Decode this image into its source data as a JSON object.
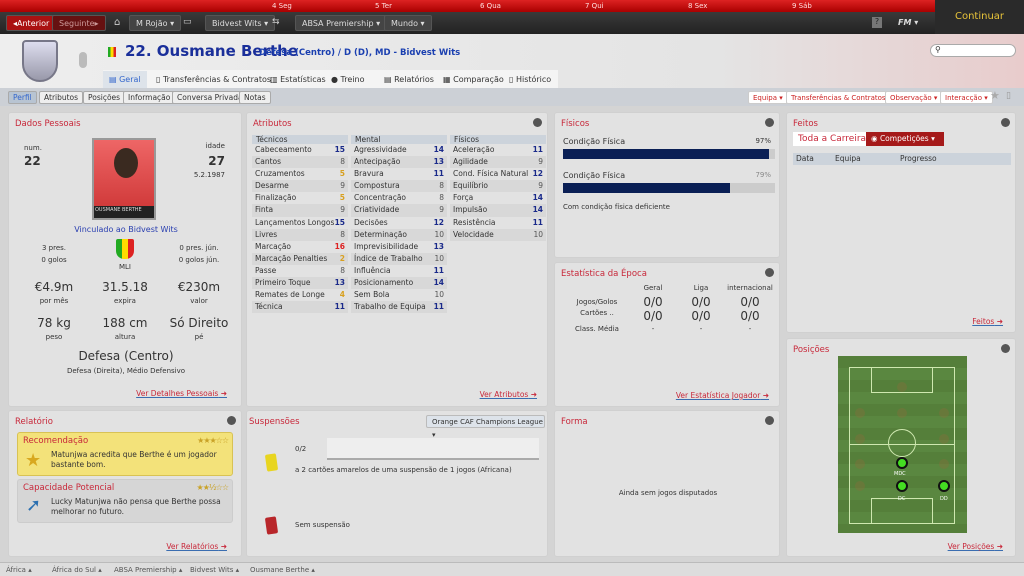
{
  "topbar": {
    "days": [
      "4 Seg",
      "5 Ter",
      "6 Qua",
      "7 Qui",
      "8 Sex",
      "9 Sáb"
    ],
    "continue_label": "Continuar"
  },
  "nav": {
    "back": "◂Anterior",
    "forward": "Seguinte▸",
    "manager": "M Rojão",
    "club": "Bidvest Wits",
    "league": "ABSA Premiership",
    "world": "Mundo",
    "fm": "FM"
  },
  "player": {
    "title": "22. Ousmane Berthe",
    "subtitle": "Defesa (Centro) / D (D), MD - Bidvest Wits"
  },
  "tabs": [
    "Geral",
    "Transferências & Contratos",
    "Estatísticas",
    "Treino",
    "Relatórios",
    "Comparação",
    "Histórico"
  ],
  "subtabs": [
    "Perfil",
    "Atributos",
    "Posições",
    "Informação",
    "Conversa Privada",
    "Notas"
  ],
  "actions": [
    "Equipa",
    "Transferências & Contratos",
    "Observação",
    "Interacção"
  ],
  "personal": {
    "title": "Dados Pessoais",
    "num_label": "num.",
    "num": "22",
    "age_label": "idade",
    "age": "27",
    "dob": "5.2.1987",
    "card_name": "OUSMANE BERTHE",
    "contract": "Vinculado ao Bidvest Wits",
    "caps": "3 pres.",
    "goals": "0 golos",
    "youth_caps": "0 pres. jún.",
    "youth_goals": "0 golos jún.",
    "nation": "MLI",
    "wage": "€4.9m",
    "wage_label": "por mês",
    "expires": "31.5.18",
    "expires_label": "expira",
    "value": "€230m",
    "value_label": "valor",
    "weight": "78 kg",
    "weight_label": "peso",
    "height": "188 cm",
    "height_label": "altura",
    "foot": "Só Direito",
    "foot_label": "pé",
    "position": "Defesa (Centro)",
    "other_positions": "Defesa (Direita), Médio Defensivo",
    "link": "Ver Detalhes Pessoais"
  },
  "attributes": {
    "title": "Atributos",
    "link": "Ver Atributos",
    "columns": [
      {
        "name": "Técnicos",
        "items": [
          [
            "Cabeceamento",
            15
          ],
          [
            "Cantos",
            8
          ],
          [
            "Cruzamentos",
            5
          ],
          [
            "Desarme",
            9
          ],
          [
            "Finalização",
            5
          ],
          [
            "Finta",
            9
          ],
          [
            "Lançamentos Longos",
            15
          ],
          [
            "Livres",
            8
          ],
          [
            "Marcação",
            16
          ],
          [
            "Marcação Penalties",
            2
          ],
          [
            "Passe",
            8
          ],
          [
            "Primeiro Toque",
            13
          ],
          [
            "Remates de Longe",
            4
          ],
          [
            "Técnica",
            11
          ]
        ]
      },
      {
        "name": "Mental",
        "items": [
          [
            "Agressividade",
            14
          ],
          [
            "Antecipação",
            13
          ],
          [
            "Bravura",
            11
          ],
          [
            "Compostura",
            8
          ],
          [
            "Concentração",
            8
          ],
          [
            "Criatividade",
            9
          ],
          [
            "Decisões",
            12
          ],
          [
            "Determinação",
            10
          ],
          [
            "Imprevisibilidade",
            13
          ],
          [
            "Índice de Trabalho",
            10
          ],
          [
            "Influência",
            11
          ],
          [
            "Posicionamento",
            14
          ],
          [
            "Sem Bola",
            10
          ],
          [
            "Trabalho de Equipa",
            11
          ]
        ]
      },
      {
        "name": "Físicos",
        "items": [
          [
            "Aceleração",
            11
          ],
          [
            "Agilidade",
            9
          ],
          [
            "Cond. Física Natural",
            12
          ],
          [
            "Equilíbrio",
            9
          ],
          [
            "Força",
            14
          ],
          [
            "Impulsão",
            14
          ],
          [
            "Resistência",
            11
          ],
          [
            "Velocidade",
            10
          ]
        ]
      }
    ]
  },
  "fisicos": {
    "title": "Físicos",
    "bars": [
      {
        "label": "Condição Física",
        "value": "97%",
        "pct": 97
      },
      {
        "label": "Condição Física",
        "value": "79%",
        "pct": 79
      }
    ],
    "note": "Com condição física deficiente"
  },
  "season": {
    "title": "Estatística da Época",
    "cols": [
      "Geral",
      "Liga",
      "internacional"
    ],
    "rows": [
      {
        "label": "Jogos/Golos",
        "values": [
          "0/0",
          "0/0",
          "0/0"
        ]
      },
      {
        "label": "Cartões ..",
        "values": [
          "0/0",
          "0/0",
          "0/0"
        ]
      },
      {
        "label": "Class. Média",
        "values": [
          "-",
          "-",
          "-"
        ]
      }
    ],
    "link": "Ver Estatística Jogador"
  },
  "feitos": {
    "title": "Feitos",
    "tab1": "Toda a Carreira",
    "tab2": "Competições",
    "cols": [
      "Data",
      "Equipa",
      "Progresso"
    ],
    "link": "Feitos"
  },
  "posicoes": {
    "title": "Posições",
    "labels": [
      "MDC",
      "DC",
      "DD"
    ],
    "link": "Ver Posições"
  },
  "relatorio": {
    "title": "Relatório",
    "rec_title": "Recomendação",
    "rec_text": "Matunjwa acredita que Berthe é um jogador bastante bom.",
    "rec_stars": 3,
    "pot_title": "Capacidade Potencial",
    "pot_text": "Lucky Matunjwa não pensa que Berthe possa melhorar no futuro.",
    "pot_stars": 2.5,
    "link": "Ver Relatórios"
  },
  "suspensoes": {
    "title": "Suspensões",
    "competition": "Orange CAF Champions League",
    "yellow_count": "0/2",
    "yellow_text": "a 2 cartões amarelos de uma suspensão de 1 jogos (Africana)",
    "red_text": "Sem suspensão"
  },
  "forma": {
    "title": "Forma",
    "empty": "Ainda sem jogos disputados"
  },
  "breadcrumb": [
    "África",
    "África do Sul",
    "ABSA Premiership",
    "Bidvest Wits",
    "Ousmane Berthe"
  ]
}
